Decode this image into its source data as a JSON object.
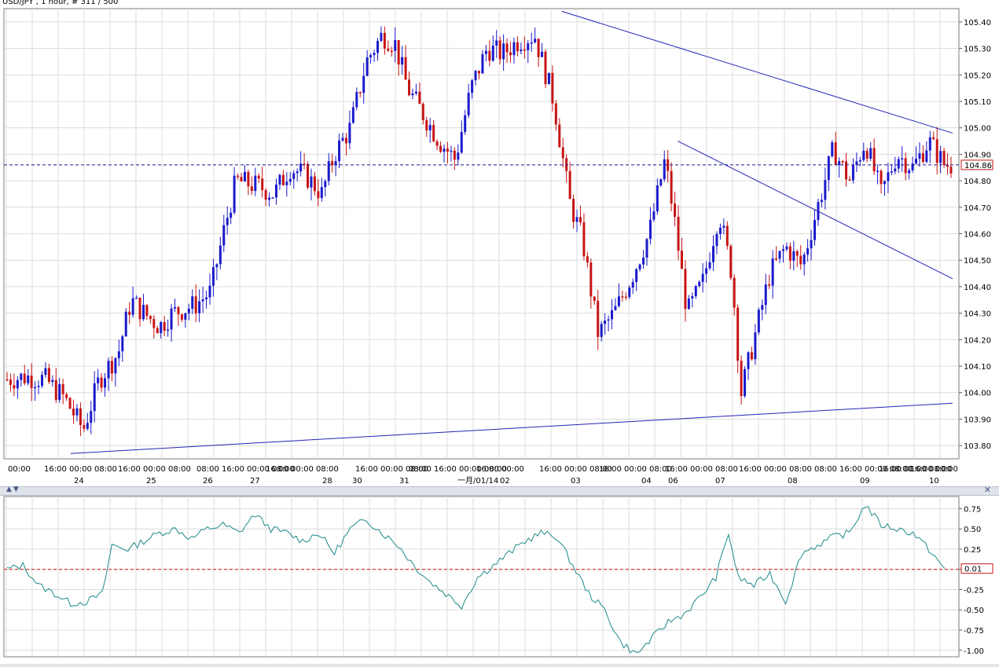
{
  "chart_data": {
    "type": "candlestick",
    "title": "USD/JPY , 1 hour, # 311 / 500",
    "price_axis": {
      "ticks": [
        "105.40",
        "105.30",
        "105.20",
        "105.10",
        "105.00",
        "104.90",
        "104.80",
        "104.70",
        "104.60",
        "104.50",
        "104.40",
        "104.30",
        "104.20",
        "104.10",
        "104.00",
        "103.90",
        "103.80"
      ],
      "range": [
        103.75,
        105.45
      ],
      "current_price": "104.86",
      "current_value": 104.86
    },
    "time_axis": {
      "time_labels": [
        "00:00",
        "16:00 00:00 08:00",
        "16:00 00:00 08:00",
        "08:00 16:00 00:00 08:00",
        "16:00 00:00 08:00",
        "16:00 00:00 08:00",
        "08:00 16:00 00:00 08:00",
        "16:00 00:00",
        "16:00 00:00 08:00",
        "16:00 00:00 08:00",
        "16:00 00:00 08:00",
        "16:00 00:00 08:00",
        "08:00 16:00 00:00 08:00",
        "16:00 00:00 08:00",
        "16:00 00:00"
      ],
      "date_labels": [
        "24",
        "25",
        "26",
        "27",
        "28",
        "30",
        "31",
        "一月/01/14",
        "02",
        "03",
        "04",
        "06",
        "07",
        "08",
        "09",
        "10"
      ]
    },
    "close_path": [
      [
        0,
        104.05
      ],
      [
        12,
        104.06
      ],
      [
        24,
        104.05
      ],
      [
        36,
        103.98
      ],
      [
        48,
        103.86
      ],
      [
        58,
        104.05
      ],
      [
        70,
        104.15
      ],
      [
        78,
        104.35
      ],
      [
        86,
        104.3
      ],
      [
        96,
        104.25
      ],
      [
        104,
        104.3
      ],
      [
        118,
        104.33
      ],
      [
        128,
        104.38
      ],
      [
        136,
        104.6
      ],
      [
        144,
        104.8
      ],
      [
        158,
        104.78
      ],
      [
        168,
        104.75
      ],
      [
        178,
        104.85
      ],
      [
        188,
        104.82
      ],
      [
        198,
        104.75
      ],
      [
        206,
        104.9
      ],
      [
        216,
        105.0
      ],
      [
        226,
        105.25
      ],
      [
        236,
        105.35
      ],
      [
        244,
        105.32
      ],
      [
        252,
        105.15
      ],
      [
        262,
        105.05
      ],
      [
        272,
        104.95
      ],
      [
        282,
        104.88
      ],
      [
        292,
        105.15
      ],
      [
        302,
        105.3
      ],
      [
        312,
        105.28
      ],
      [
        322,
        105.33
      ],
      [
        332,
        105.35
      ],
      [
        344,
        105.1
      ],
      [
        354,
        104.72
      ],
      [
        362,
        104.58
      ],
      [
        372,
        104.22
      ],
      [
        382,
        104.3
      ],
      [
        394,
        104.45
      ],
      [
        404,
        104.6
      ],
      [
        414,
        104.88
      ],
      [
        420,
        104.65
      ],
      [
        428,
        104.3
      ],
      [
        438,
        104.42
      ],
      [
        448,
        104.68
      ],
      [
        456,
        104.45
      ],
      [
        462,
        104.0
      ],
      [
        470,
        104.2
      ],
      [
        480,
        104.45
      ],
      [
        490,
        104.55
      ],
      [
        500,
        104.48
      ],
      [
        510,
        104.7
      ],
      [
        520,
        104.92
      ],
      [
        530,
        104.8
      ],
      [
        540,
        104.95
      ],
      [
        550,
        104.75
      ],
      [
        560,
        104.9
      ],
      [
        570,
        104.85
      ],
      [
        580,
        104.95
      ],
      [
        590,
        104.86
      ]
    ],
    "resistance_upper": [
      [
        349,
        105.44
      ],
      [
        595,
        104.98
      ]
    ],
    "resistance_lower": [
      [
        422,
        104.95
      ],
      [
        595,
        104.43
      ]
    ],
    "support_line": [
      [
        40,
        103.77
      ],
      [
        595,
        103.96
      ]
    ],
    "oscillator": {
      "ticks": [
        "0.75",
        "0.50",
        "0.25",
        "0.00",
        "-0.25",
        "-0.50",
        "-0.75",
        "-1.00"
      ],
      "range": [
        -1.08,
        0.9
      ],
      "current_value": "0.01",
      "values": [
        [
          0,
          0.0
        ],
        [
          10,
          0.05
        ],
        [
          20,
          -0.2
        ],
        [
          30,
          -0.3
        ],
        [
          40,
          -0.42
        ],
        [
          50,
          -0.4
        ],
        [
          60,
          -0.3
        ],
        [
          66,
          0.3
        ],
        [
          76,
          0.25
        ],
        [
          86,
          0.35
        ],
        [
          96,
          0.45
        ],
        [
          106,
          0.5
        ],
        [
          116,
          0.38
        ],
        [
          126,
          0.5
        ],
        [
          136,
          0.55
        ],
        [
          146,
          0.45
        ],
        [
          156,
          0.68
        ],
        [
          166,
          0.5
        ],
        [
          176,
          0.45
        ],
        [
          186,
          0.35
        ],
        [
          196,
          0.45
        ],
        [
          206,
          0.2
        ],
        [
          216,
          0.5
        ],
        [
          226,
          0.62
        ],
        [
          236,
          0.45
        ],
        [
          246,
          0.3
        ],
        [
          256,
          0.05
        ],
        [
          266,
          -0.15
        ],
        [
          276,
          -0.3
        ],
        [
          286,
          -0.45
        ],
        [
          296,
          -0.1
        ],
        [
          306,
          0.05
        ],
        [
          316,
          0.2
        ],
        [
          326,
          0.35
        ],
        [
          336,
          0.45
        ],
        [
          346,
          0.4
        ],
        [
          356,
          0.05
        ],
        [
          366,
          -0.3
        ],
        [
          376,
          -0.5
        ],
        [
          386,
          -0.9
        ],
        [
          396,
          -1.05
        ],
        [
          406,
          -0.85
        ],
        [
          416,
          -0.65
        ],
        [
          426,
          -0.55
        ],
        [
          436,
          -0.35
        ],
        [
          446,
          -0.1
        ],
        [
          454,
          0.45
        ],
        [
          460,
          -0.1
        ],
        [
          470,
          -0.2
        ],
        [
          480,
          -0.05
        ],
        [
          490,
          -0.4
        ],
        [
          500,
          0.2
        ],
        [
          510,
          0.3
        ],
        [
          520,
          0.4
        ],
        [
          530,
          0.45
        ],
        [
          540,
          0.8
        ],
        [
          550,
          0.55
        ],
        [
          560,
          0.5
        ],
        [
          570,
          0.45
        ],
        [
          580,
          0.25
        ],
        [
          590,
          0.01
        ]
      ]
    }
  },
  "colors": {
    "bull": "#1a1acc",
    "bear": "#c81414",
    "trendline": "#2424b8",
    "oscillator_line": "#1c8a8a",
    "grid": "#dcdcdc",
    "price_dash": "#1a1a8a",
    "zero_dash": "#e01010"
  }
}
